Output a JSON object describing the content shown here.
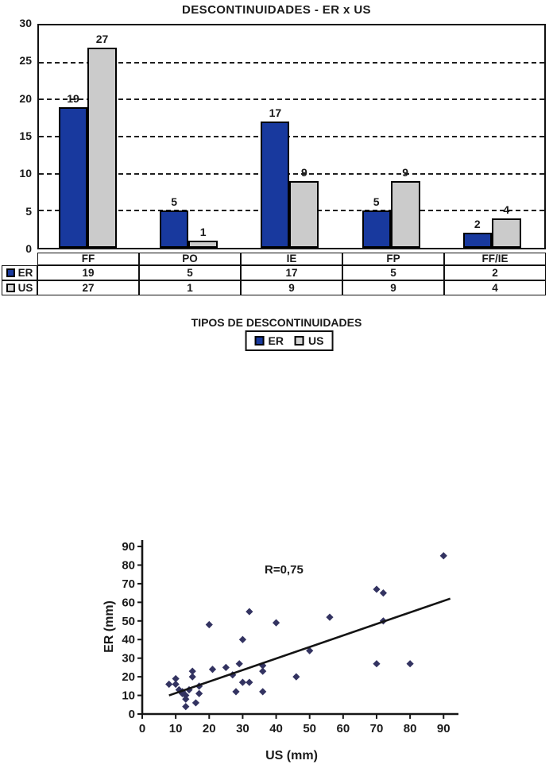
{
  "chart_data": [
    {
      "type": "bar",
      "title": "DESCONTINUIDADES - ER x US",
      "xlabel": "TIPOS DE DESCONTINUIDADES",
      "ylabel": "",
      "categories": [
        "FF",
        "PO",
        "IE",
        "FP",
        "FF/IE"
      ],
      "series": [
        {
          "name": "ER",
          "color": "#18399e",
          "legend_color": "#18399e",
          "values": [
            19,
            5,
            17,
            5,
            2
          ]
        },
        {
          "name": "US",
          "color": "#cbcbcb",
          "legend_color": "#d4d4d4",
          "values": [
            27,
            1,
            9,
            9,
            4
          ]
        }
      ],
      "ylim": [
        0,
        30
      ],
      "y_ticks": [
        0,
        5,
        10,
        15,
        20,
        25,
        30
      ],
      "grid": "horizontal-dashed",
      "legend_position": "bottom",
      "legend_labels": [
        "ER",
        "US"
      ],
      "data_table_shown": true
    },
    {
      "type": "scatter",
      "xlabel": "US (mm)",
      "ylabel": "ER (mm)",
      "xlim": [
        0,
        90
      ],
      "ylim": [
        0,
        90
      ],
      "x_ticks": [
        0,
        10,
        20,
        30,
        40,
        50,
        60,
        70,
        80,
        90
      ],
      "y_ticks": [
        0,
        10,
        20,
        30,
        40,
        50,
        60,
        70,
        80,
        90
      ],
      "annotation": "R=0,75",
      "point_color": "#333361",
      "marker": "diamond",
      "grid": "off",
      "points": [
        [
          8,
          16
        ],
        [
          10,
          19
        ],
        [
          10,
          16
        ],
        [
          11,
          13
        ],
        [
          12,
          12
        ],
        [
          12,
          11
        ],
        [
          13,
          10
        ],
        [
          13,
          8
        ],
        [
          14,
          13
        ],
        [
          15,
          23
        ],
        [
          15,
          20
        ],
        [
          17,
          15
        ],
        [
          17,
          11
        ],
        [
          16,
          6
        ],
        [
          13,
          4
        ],
        [
          20,
          48
        ],
        [
          21,
          24
        ],
        [
          25,
          25
        ],
        [
          29,
          27
        ],
        [
          27,
          21
        ],
        [
          28,
          12
        ],
        [
          30,
          40
        ],
        [
          30,
          17
        ],
        [
          32,
          17
        ],
        [
          32,
          55
        ],
        [
          36,
          26
        ],
        [
          36,
          23
        ],
        [
          36,
          12
        ],
        [
          40,
          49
        ],
        [
          46,
          20
        ],
        [
          50,
          34
        ],
        [
          56,
          52
        ],
        [
          70,
          67
        ],
        [
          72,
          65
        ],
        [
          72,
          50
        ],
        [
          70,
          27
        ],
        [
          80,
          27
        ],
        [
          90,
          85
        ]
      ],
      "trendline": {
        "x1": 8,
        "y1": 10,
        "x2": 92,
        "y2": 62
      }
    }
  ]
}
